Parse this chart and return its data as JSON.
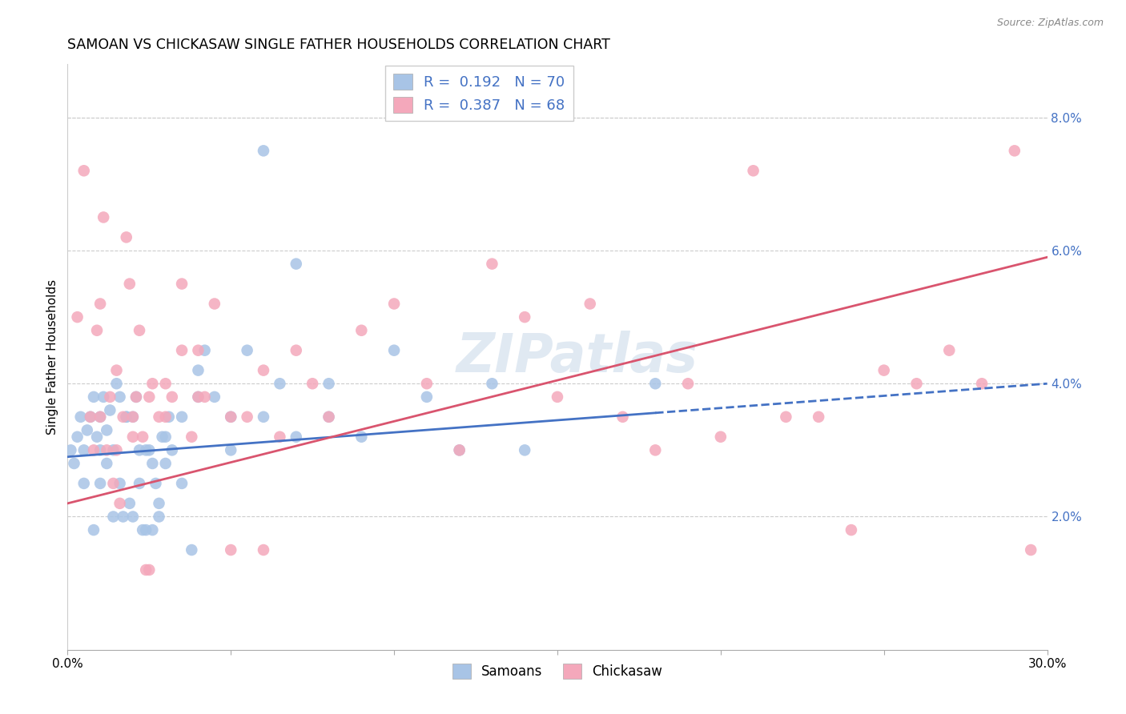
{
  "title": "SAMOAN VS CHICKASAW SINGLE FATHER HOUSEHOLDS CORRELATION CHART",
  "source": "Source: ZipAtlas.com",
  "ylabel": "Single Father Households",
  "xlim": [
    0,
    30
  ],
  "ylim": [
    0,
    8.8
  ],
  "samoans_R": "0.192",
  "samoans_N": "70",
  "chickasaw_R": "0.387",
  "chickasaw_N": "68",
  "samoans_color": "#a8c4e6",
  "chickasaw_color": "#f4a8bb",
  "samoans_line_color": "#4472c4",
  "chickasaw_line_color": "#d9546e",
  "background_color": "#ffffff",
  "grid_color": "#cccccc",
  "legend_text_color": "#4472c4",
  "watermark": "ZIPatlas",
  "samoans_x": [
    0.1,
    0.2,
    0.3,
    0.4,
    0.5,
    0.6,
    0.7,
    0.8,
    0.9,
    1.0,
    1.0,
    1.1,
    1.2,
    1.3,
    1.4,
    1.5,
    1.6,
    1.7,
    1.8,
    1.9,
    2.0,
    2.1,
    2.2,
    2.3,
    2.4,
    2.5,
    2.6,
    2.7,
    2.8,
    2.9,
    3.0,
    3.1,
    3.2,
    3.5,
    3.8,
    4.0,
    4.2,
    4.5,
    5.0,
    5.5,
    6.0,
    6.5,
    7.0,
    8.0,
    9.0,
    10.0,
    11.0,
    12.0,
    13.0,
    14.0,
    0.5,
    0.8,
    1.0,
    1.2,
    1.4,
    1.6,
    1.8,
    2.0,
    2.2,
    2.4,
    2.6,
    2.8,
    3.0,
    3.5,
    4.0,
    5.0,
    6.0,
    7.0,
    8.0,
    18.0
  ],
  "samoans_y": [
    3.0,
    2.8,
    3.2,
    3.5,
    3.0,
    3.3,
    3.5,
    3.8,
    3.2,
    3.5,
    3.0,
    3.8,
    3.3,
    3.6,
    3.0,
    4.0,
    3.8,
    2.0,
    3.5,
    2.2,
    3.5,
    3.8,
    3.0,
    1.8,
    1.8,
    3.0,
    1.8,
    2.5,
    2.0,
    3.2,
    3.2,
    3.5,
    3.0,
    3.5,
    1.5,
    4.2,
    4.5,
    3.8,
    3.5,
    4.5,
    7.5,
    4.0,
    5.8,
    3.5,
    3.2,
    4.5,
    3.8,
    3.0,
    4.0,
    3.0,
    2.5,
    1.8,
    2.5,
    2.8,
    2.0,
    2.5,
    3.5,
    2.0,
    2.5,
    3.0,
    2.8,
    2.2,
    2.8,
    2.5,
    3.8,
    3.0,
    3.5,
    3.2,
    4.0,
    4.0
  ],
  "chickasaw_x": [
    0.3,
    0.5,
    0.7,
    0.8,
    0.9,
    1.0,
    1.1,
    1.2,
    1.3,
    1.4,
    1.5,
    1.6,
    1.7,
    1.8,
    1.9,
    2.0,
    2.1,
    2.2,
    2.3,
    2.4,
    2.5,
    2.6,
    2.8,
    3.0,
    3.2,
    3.5,
    3.8,
    4.0,
    4.2,
    4.5,
    5.0,
    5.5,
    6.0,
    6.5,
    7.0,
    7.5,
    8.0,
    9.0,
    10.0,
    11.0,
    12.0,
    13.0,
    14.0,
    15.0,
    16.0,
    17.0,
    18.0,
    19.0,
    20.0,
    21.0,
    22.0,
    23.0,
    24.0,
    25.0,
    26.0,
    27.0,
    28.0,
    29.0,
    1.0,
    1.5,
    2.0,
    2.5,
    3.0,
    3.5,
    4.0,
    5.0,
    6.0,
    29.5
  ],
  "chickasaw_y": [
    5.0,
    7.2,
    3.5,
    3.0,
    4.8,
    3.5,
    6.5,
    3.0,
    3.8,
    2.5,
    3.0,
    2.2,
    3.5,
    6.2,
    5.5,
    3.2,
    3.8,
    4.8,
    3.2,
    1.2,
    1.2,
    4.0,
    3.5,
    3.5,
    3.8,
    5.5,
    3.2,
    4.5,
    3.8,
    5.2,
    3.5,
    3.5,
    4.2,
    3.2,
    4.5,
    4.0,
    3.5,
    4.8,
    5.2,
    4.0,
    3.0,
    5.8,
    5.0,
    3.8,
    5.2,
    3.5,
    3.0,
    4.0,
    3.2,
    7.2,
    3.5,
    3.5,
    1.8,
    4.2,
    4.0,
    4.5,
    4.0,
    7.5,
    5.2,
    4.2,
    3.5,
    3.8,
    4.0,
    4.5,
    3.8,
    1.5,
    1.5,
    1.5
  ],
  "samoans_solid_end": 18.0,
  "blue_line_y0": 2.9,
  "blue_line_y30": 4.0,
  "pink_line_y0": 2.2,
  "pink_line_y30": 5.9
}
